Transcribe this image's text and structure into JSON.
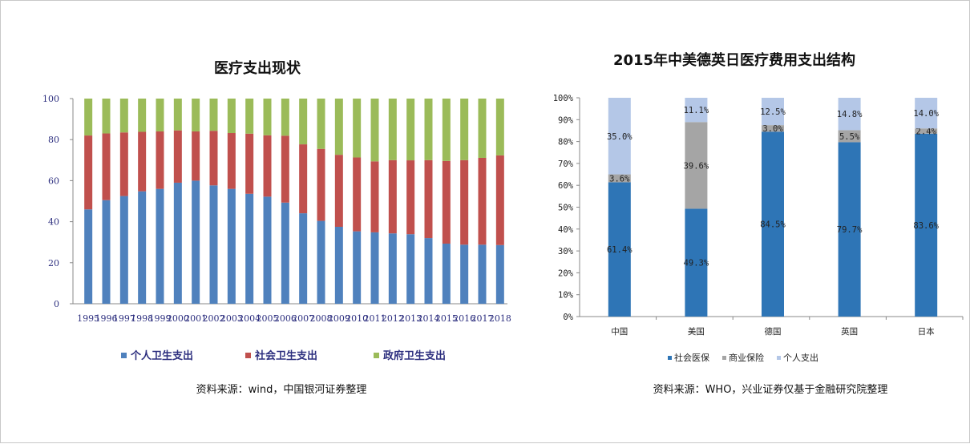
{
  "left_chart": {
    "title": "医疗支出现状",
    "source": "资料来源：wind，中国银河证券整理",
    "legend": [
      "个人卫生支出",
      "社会卫生支出",
      "政府卫生支出"
    ],
    "colors": [
      "#4f81bd",
      "#c0504d",
      "#9bbb59"
    ],
    "y_ticks": [
      "0",
      "20",
      "40",
      "60",
      "80",
      "100"
    ]
  },
  "right_chart": {
    "title": "2015年中美德英日医疗费用支出结构",
    "source": "资料来源：WHO，兴业证券仅基于金融研究院整理",
    "legend": [
      "社会医保",
      "商业保险",
      "个人支出"
    ],
    "colors": [
      "#2e75b6",
      "#a5a5a5",
      "#b4c7e7"
    ],
    "y_ticks": [
      "0%",
      "10%",
      "20%",
      "30%",
      "40%",
      "50%",
      "60%",
      "70%",
      "80%",
      "90%",
      "100%"
    ]
  },
  "chart_data": [
    {
      "type": "bar",
      "stacked": true,
      "title": "医疗支出现状",
      "categories": [
        "1995",
        "1996",
        "1997",
        "1998",
        "1999",
        "2000",
        "2001",
        "2002",
        "2003",
        "2004",
        "2005",
        "2006",
        "2007",
        "2008",
        "2009",
        "2010",
        "2011",
        "2012",
        "2013",
        "2014",
        "2015",
        "2016",
        "2017",
        "2018"
      ],
      "series": [
        {
          "name": "个人卫生支出",
          "values": [
            46,
            50.5,
            52.5,
            54.8,
            56,
            59,
            60,
            57.7,
            56,
            53.6,
            52.2,
            49.3,
            44.1,
            40.4,
            37.5,
            35.3,
            34.8,
            34.3,
            33.9,
            32,
            29.3,
            28.8,
            28.8,
            28.6
          ]
        },
        {
          "name": "社会卫生支出",
          "values": [
            36,
            32.5,
            31,
            29,
            28,
            25.5,
            24,
            26.6,
            27.2,
            29.3,
            29.9,
            32.6,
            33.6,
            35.1,
            35.1,
            36,
            34.6,
            35.7,
            36,
            38,
            40.3,
            41.2,
            42.3,
            43.7
          ]
        },
        {
          "name": "政府卫生支出",
          "values": [
            18,
            17,
            16.5,
            16.2,
            16,
            15.5,
            16,
            15.7,
            16.8,
            17.1,
            17.9,
            18.1,
            22.3,
            24.5,
            27.4,
            28.7,
            30.6,
            30,
            30.1,
            30,
            30.4,
            30,
            28.9,
            27.7
          ]
        }
      ],
      "ylim": [
        0,
        100
      ],
      "legend_position": "bottom"
    },
    {
      "type": "bar",
      "stacked": true,
      "title": "2015年中美德英日医疗费用支出结构",
      "categories": [
        "中国",
        "美国",
        "德国",
        "英国",
        "日本"
      ],
      "series": [
        {
          "name": "社会医保",
          "values": [
            61.4,
            49.3,
            84.5,
            79.7,
            83.6
          ],
          "labels": [
            "61.4%",
            "49.3%",
            "84.5%",
            "79.7%",
            "83.6%"
          ]
        },
        {
          "name": "商业保险",
          "values": [
            3.6,
            39.6,
            3.0,
            5.5,
            2.4
          ],
          "labels": [
            "3.6%",
            "39.6%",
            "3.0%",
            "5.5%",
            "2.4%"
          ]
        },
        {
          "name": "个人支出",
          "values": [
            35.0,
            11.1,
            12.5,
            14.8,
            14.0
          ],
          "labels": [
            "35.0%",
            "11.1%",
            "12.5%",
            "14.8%",
            "14.0%"
          ]
        }
      ],
      "ylim": [
        0,
        100
      ],
      "legend_position": "bottom"
    }
  ]
}
